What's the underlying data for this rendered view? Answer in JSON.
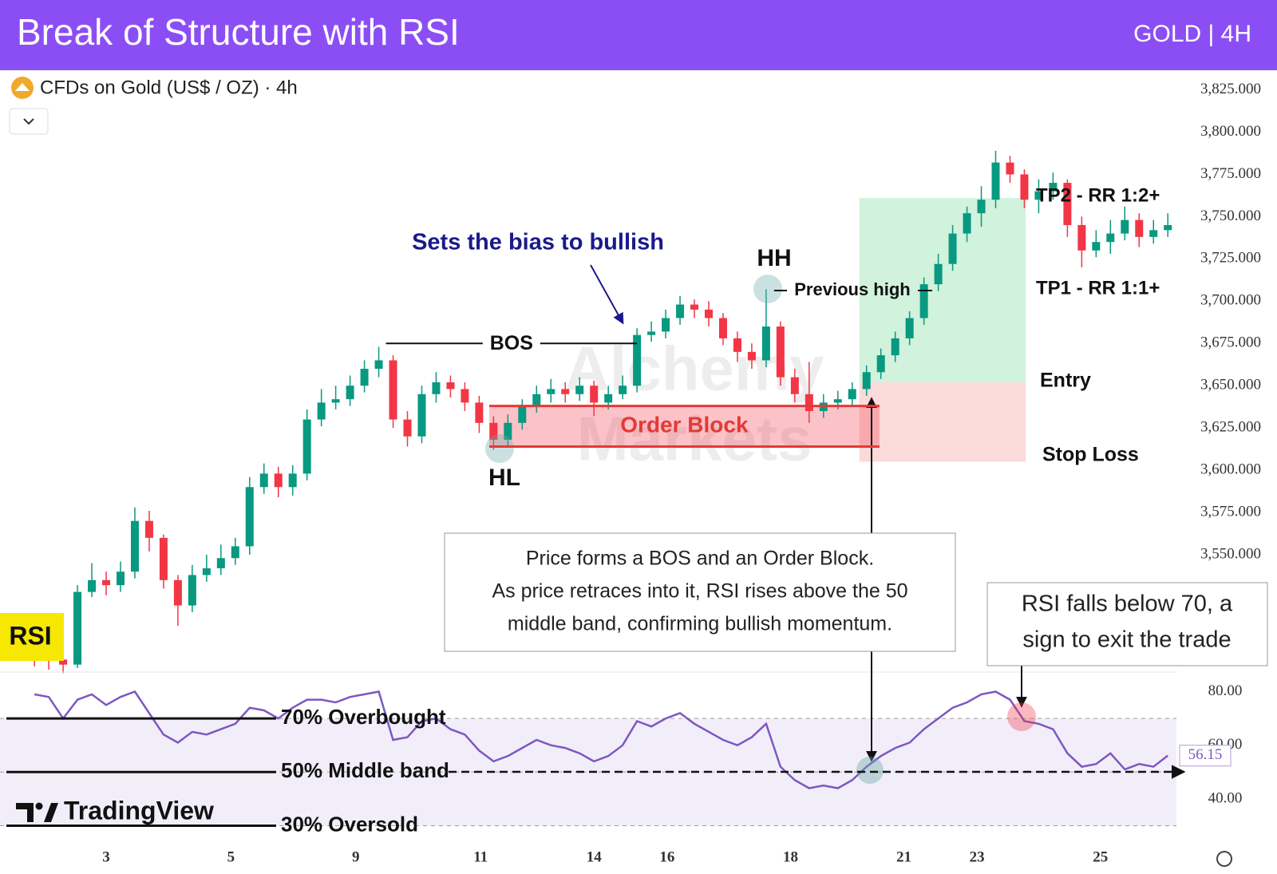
{
  "chart_data": {
    "type": "candlestick",
    "title": "Break of Structure with RSI",
    "subtitle": "GOLD | 4H",
    "symbol": "CFDs on Gold (US$ / OZ) · 4h",
    "grid": false,
    "up_color": "#089981",
    "down_color": "#f23645",
    "xlim": [
      -2.4,
      79.6
    ],
    "xticks": [
      {
        "value": 5,
        "label": "3"
      },
      {
        "value": 13.7,
        "label": "5"
      },
      {
        "value": 22.4,
        "label": "9"
      },
      {
        "value": 31.1,
        "label": "11"
      },
      {
        "value": 39,
        "label": "14"
      },
      {
        "value": 44.1,
        "label": "16"
      },
      {
        "value": 52.7,
        "label": "18"
      },
      {
        "value": 60.6,
        "label": "21"
      },
      {
        "value": 65.7,
        "label": "23"
      },
      {
        "value": 74.3,
        "label": "25"
      }
    ],
    "ylim": [
      3480.6,
      3836.6
    ],
    "yticks": [
      {
        "value": 3550,
        "label": "3,550.000"
      },
      {
        "value": 3575,
        "label": "3,575.000"
      },
      {
        "value": 3600,
        "label": "3,600.000"
      },
      {
        "value": 3625,
        "label": "3,625.000"
      },
      {
        "value": 3650,
        "label": "3,650.000"
      },
      {
        "value": 3675,
        "label": "3,675.000"
      },
      {
        "value": 3700,
        "label": "3,700.000"
      },
      {
        "value": 3725,
        "label": "3,725.000"
      },
      {
        "value": 3750,
        "label": "3,750.000"
      },
      {
        "value": 3775,
        "label": "3,775.000"
      },
      {
        "value": 3800,
        "label": "3,800.000"
      },
      {
        "value": 3825,
        "label": "3,825.000"
      }
    ],
    "open": [
      3495,
      3490,
      3488,
      3485,
      3528,
      3535,
      3532,
      3540,
      3570,
      3560,
      3535,
      3520,
      3538,
      3542,
      3548,
      3555,
      3590,
      3598,
      3590,
      3598,
      3630,
      3640,
      3642,
      3650,
      3660,
      3665,
      3630,
      3620,
      3645,
      3652,
      3648,
      3640,
      3628,
      3618,
      3628,
      3638,
      3645,
      3648,
      3645,
      3650,
      3640,
      3645,
      3650,
      3680,
      3682,
      3690,
      3698,
      3695,
      3690,
      3678,
      3670,
      3665,
      3685,
      3655,
      3645,
      3635,
      3640,
      3642,
      3648,
      3658,
      3668,
      3678,
      3690,
      3710,
      3722,
      3740,
      3752,
      3760,
      3782,
      3775,
      3760,
      3765,
      3770,
      3745,
      3730,
      3735,
      3740,
      3748,
      3738,
      3742
    ],
    "high": [
      3499,
      3494,
      3492,
      3532,
      3545,
      3540,
      3546,
      3578,
      3576,
      3562,
      3538,
      3544,
      3550,
      3556,
      3560,
      3596,
      3604,
      3602,
      3603,
      3636,
      3648,
      3650,
      3656,
      3665,
      3673,
      3668,
      3635,
      3650,
      3658,
      3656,
      3652,
      3644,
      3632,
      3633,
      3642,
      3650,
      3654,
      3652,
      3655,
      3653,
      3650,
      3656,
      3684,
      3688,
      3695,
      3703,
      3701,
      3700,
      3693,
      3682,
      3675,
      3707,
      3688,
      3660,
      3664,
      3645,
      3647,
      3652,
      3662,
      3672,
      3682,
      3694,
      3714,
      3728,
      3745,
      3756,
      3768,
      3789,
      3786,
      3778,
      3772,
      3776,
      3772,
      3750,
      3742,
      3748,
      3756,
      3752,
      3748,
      3752
    ],
    "low": [
      3484,
      3482,
      3480,
      3483,
      3525,
      3526,
      3528,
      3536,
      3552,
      3530,
      3508,
      3516,
      3534,
      3538,
      3544,
      3550,
      3586,
      3584,
      3585,
      3594,
      3626,
      3636,
      3638,
      3646,
      3655,
      3625,
      3614,
      3616,
      3640,
      3643,
      3635,
      3622,
      3612,
      3614,
      3624,
      3634,
      3640,
      3640,
      3641,
      3632,
      3636,
      3642,
      3646,
      3676,
      3678,
      3686,
      3690,
      3685,
      3674,
      3664,
      3660,
      3661,
      3650,
      3640,
      3628,
      3631,
      3636,
      3638,
      3644,
      3654,
      3664,
      3674,
      3686,
      3706,
      3718,
      3735,
      3744,
      3755,
      3770,
      3755,
      3752,
      3760,
      3738,
      3720,
      3726,
      3728,
      3736,
      3732,
      3734,
      3738
    ],
    "close": [
      3490,
      3488,
      3485,
      3528,
      3535,
      3532,
      3540,
      3570,
      3560,
      3535,
      3520,
      3538,
      3542,
      3548,
      3555,
      3590,
      3598,
      3590,
      3598,
      3630,
      3640,
      3642,
      3650,
      3660,
      3665,
      3630,
      3620,
      3645,
      3652,
      3648,
      3640,
      3628,
      3618,
      3628,
      3638,
      3645,
      3648,
      3645,
      3650,
      3640,
      3645,
      3650,
      3680,
      3682,
      3690,
      3698,
      3695,
      3690,
      3678,
      3670,
      3665,
      3685,
      3655,
      3645,
      3635,
      3640,
      3642,
      3648,
      3658,
      3668,
      3678,
      3690,
      3710,
      3722,
      3740,
      3752,
      3760,
      3782,
      3775,
      3760,
      3765,
      3770,
      3745,
      3730,
      3735,
      3740,
      3748,
      3738,
      3742,
      3745
    ],
    "rsi": {
      "name": "RSI",
      "color": "#7e57c2",
      "values": [
        79,
        78,
        70,
        77,
        79,
        75,
        78,
        80,
        72,
        64,
        61,
        65,
        64,
        66,
        68,
        74,
        73,
        70,
        74,
        77,
        77,
        76,
        78,
        79,
        80,
        62,
        63,
        69,
        70,
        66,
        64,
        58,
        54,
        56,
        59,
        62,
        60,
        59,
        57,
        54,
        56,
        60,
        69,
        67,
        70,
        72,
        68,
        65,
        62,
        60,
        63,
        68,
        52,
        47,
        44,
        45,
        44,
        47,
        52,
        56,
        59,
        61,
        66,
        70,
        74,
        76,
        79,
        80,
        77,
        69,
        68,
        66,
        57,
        52,
        53,
        57,
        51,
        53,
        52,
        56.15
      ],
      "ylim": [
        23.6,
        87.3
      ],
      "yticks": [
        {
          "value": 40,
          "label": "40.00"
        },
        {
          "value": 60,
          "label": "60.00"
        },
        {
          "value": 80,
          "label": "80.00"
        }
      ],
      "levels": [
        {
          "value": 70,
          "label": "70% Overbought"
        },
        {
          "value": 50,
          "label": "50% Middle band"
        },
        {
          "value": 30,
          "label": "30% Oversold"
        }
      ]
    },
    "bos": {
      "label": "BOS",
      "value": 3675,
      "x_start": 24.5,
      "x_end": 42
    },
    "order_block": {
      "label": "Order Block",
      "top": 3638,
      "bottom": 3614,
      "x_start": 31.7,
      "x_end": 58.9
    },
    "position": {
      "target": 3761,
      "entry": 3652,
      "stop": 3605,
      "x_start": 57.5,
      "x_end": 69.1,
      "target_label": "TP2 - RR 1:2+",
      "tp1_label": "TP1 - RR 1:1+",
      "entry_label": "Entry",
      "stop_label": "Stop Loss"
    },
    "annotations": {
      "bias": "Sets the bias to bullish",
      "hh": "HH",
      "hl": "HL",
      "previous_high": "Previous high",
      "note": [
        "Price forms a BOS and an Order Block.",
        "As price retraces into it, RSI rises above the 50",
        "middle band, confirming bullish momentum."
      ],
      "exit_note": [
        "RSI falls below 70, a",
        "sign to exit the trade"
      ],
      "watermark": [
        "Alchemy",
        "Markets"
      ],
      "logo": "TradingView"
    }
  }
}
